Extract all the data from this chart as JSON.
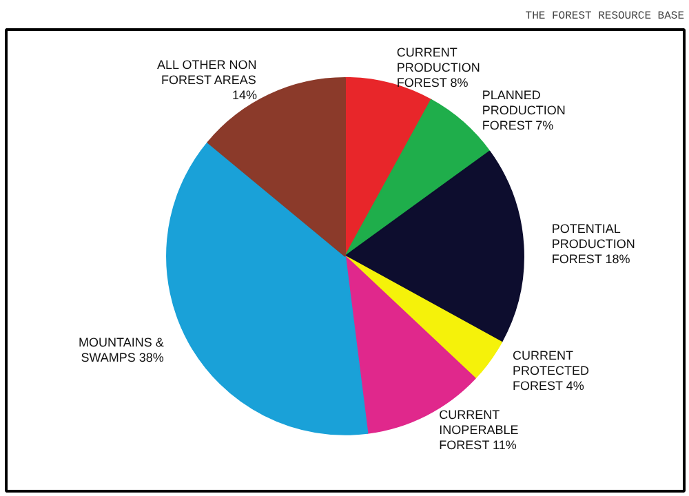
{
  "chart_data": {
    "type": "pie",
    "title": "THE FOREST RESOURCE BASE",
    "categories": [
      "CURRENT\nPRODUCTION\nFOREST",
      "PLANNED\nPRODUCTION\nFOREST",
      "POTENTIAL\nPRODUCTION\nFOREST",
      "CURRENT\nPROTECTED\nFOREST",
      "CURRENT\nINOPERABLE\nFOREST",
      "MOUNTAINS &\nSWAMPS",
      "ALL OTHER NON\nFOREST AREAS"
    ],
    "values": [
      8,
      7,
      18,
      4,
      11,
      38,
      14
    ],
    "value_labels": [
      "8%",
      "7%",
      "18%",
      "4%",
      "11%",
      "38%",
      "14%"
    ],
    "colors": [
      "#e8262a",
      "#1fae4b",
      "#0d0d2e",
      "#f5f20a",
      "#e0288c",
      "#1aa1d8",
      "#8b3a2a"
    ]
  }
}
